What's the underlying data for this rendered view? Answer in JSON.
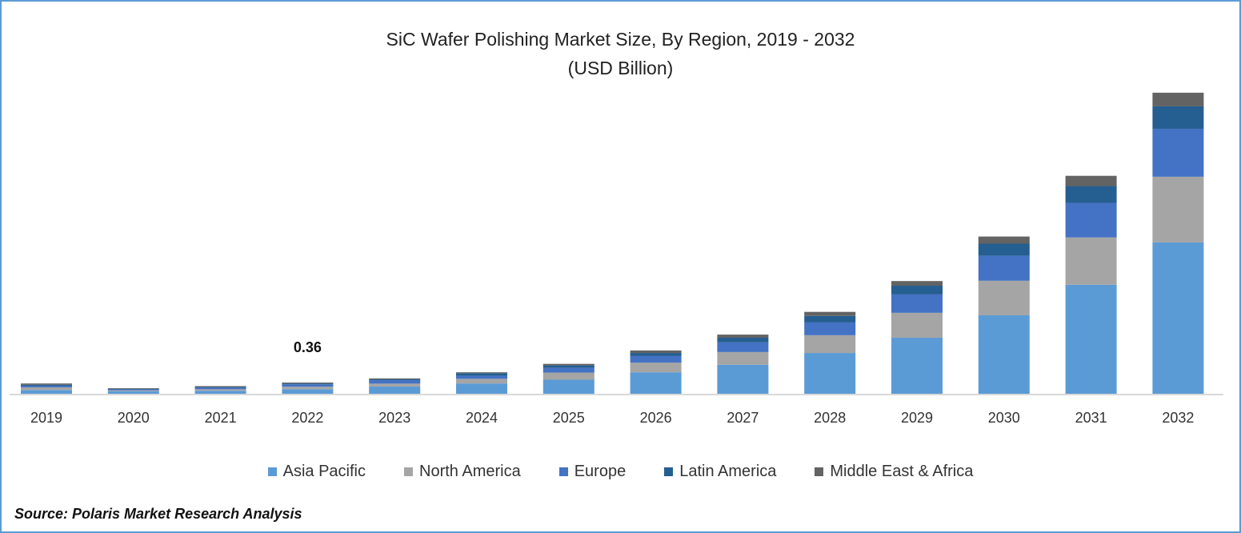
{
  "chart_data": {
    "type": "bar",
    "stacked": true,
    "title": "SiC Wafer Polishing Market Size, By Region, 2019 - 2032",
    "subtitle": "(USD Billion)",
    "xlabel": "",
    "ylabel": "",
    "categories": [
      "2019",
      "2020",
      "2021",
      "2022",
      "2023",
      "2024",
      "2025",
      "2026",
      "2027",
      "2028",
      "2029",
      "2030",
      "2031",
      "2032"
    ],
    "series": [
      {
        "name": "Asia Pacific",
        "color": "#5b9bd5",
        "values": [
          0.12,
          0.08,
          0.095,
          0.145,
          0.23,
          0.33,
          0.45,
          0.69,
          0.93,
          1.31,
          1.8,
          2.52,
          3.5,
          4.86
        ]
      },
      {
        "name": "North America",
        "color": "#a5a5a5",
        "values": [
          0.085,
          0.03,
          0.05,
          0.08,
          0.095,
          0.15,
          0.23,
          0.31,
          0.41,
          0.57,
          0.8,
          1.11,
          1.52,
          2.11
        ]
      },
      {
        "name": "Europe",
        "color": "#4472c4",
        "values": [
          0.05,
          0.03,
          0.05,
          0.075,
          0.11,
          0.1,
          0.15,
          0.21,
          0.31,
          0.41,
          0.59,
          0.8,
          1.11,
          1.54
        ]
      },
      {
        "name": "Latin America",
        "color": "#255e91",
        "values": [
          0.035,
          0.02,
          0.025,
          0.03,
          0.035,
          0.08,
          0.08,
          0.1,
          0.15,
          0.21,
          0.28,
          0.39,
          0.54,
          0.72
        ]
      },
      {
        "name": "Middle East & Africa",
        "color": "#636363",
        "values": [
          0.04,
          0.02,
          0.025,
          0.03,
          0.025,
          0.03,
          0.05,
          0.08,
          0.1,
          0.13,
          0.15,
          0.23,
          0.33,
          0.44
        ]
      }
    ],
    "annotations": [
      {
        "category": "2022",
        "text": "0.36"
      }
    ],
    "ylim": [
      0,
      9.8
    ],
    "grid": false,
    "legend_position": "bottom"
  },
  "source": "Source: Polaris Market Research Analysis"
}
